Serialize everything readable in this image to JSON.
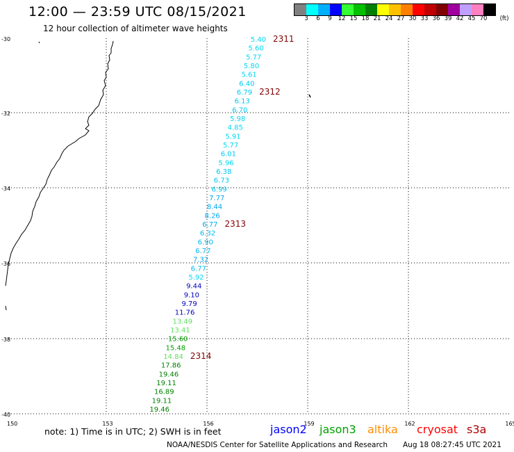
{
  "header": {
    "title": "12:00 — 23:59 UTC 08/15/2021",
    "subtitle": "12 hour collection of altimeter wave heights"
  },
  "legend": {
    "colors": [
      "#808080",
      "#00ffff",
      "#00b0ff",
      "#0000ff",
      "#33ff33",
      "#00c000",
      "#008000",
      "#ffff00",
      "#ffc000",
      "#ff8000",
      "#ff0000",
      "#c00000",
      "#800000",
      "#a000a0",
      "#c0a0ff",
      "#ff80c0",
      "#000000"
    ],
    "labels": [
      "3",
      "6",
      "9",
      "12",
      "15",
      "18",
      "21",
      "24",
      "27",
      "30",
      "33",
      "36",
      "39",
      "42",
      "45",
      "70"
    ],
    "unit": "(ft)"
  },
  "map": {
    "lat_labels": [
      "-30",
      "-32",
      "-34",
      "-36",
      "-38",
      "-40"
    ],
    "lon_labels": [
      "150",
      "153",
      "156",
      "159",
      "162",
      "165"
    ]
  },
  "passes": [
    {
      "id": "2311",
      "color": "#800000"
    },
    {
      "id": "2312",
      "color": "#800000"
    },
    {
      "id": "2313",
      "color": "#800000"
    },
    {
      "id": "2314",
      "color": "#800000"
    }
  ],
  "observations": [
    {
      "value": "5.40",
      "color": "#00d8f0"
    },
    {
      "value": "5.60",
      "color": "#00d8f0"
    },
    {
      "value": "5.77",
      "color": "#00d8f0"
    },
    {
      "value": "5.80",
      "color": "#00d8f0"
    },
    {
      "value": "5.61",
      "color": "#00d8f0"
    },
    {
      "value": "6.40",
      "color": "#00c8f0"
    },
    {
      "value": "6.79",
      "color": "#00c8f0"
    },
    {
      "value": "6.13",
      "color": "#00c8f0"
    },
    {
      "value": "6.70",
      "color": "#00c8f0"
    },
    {
      "value": "5.98",
      "color": "#00d8f0"
    },
    {
      "value": "4.85",
      "color": "#00d8f0"
    },
    {
      "value": "5.91",
      "color": "#00d8f0"
    },
    {
      "value": "5.77",
      "color": "#00d8f0"
    },
    {
      "value": "6.01",
      "color": "#00c8f0"
    },
    {
      "value": "5.96",
      "color": "#00d8f0"
    },
    {
      "value": "6.38",
      "color": "#00c8f0"
    },
    {
      "value": "6.73",
      "color": "#00c8f0"
    },
    {
      "value": "6.99",
      "color": "#00c8f0"
    },
    {
      "value": "7.77",
      "color": "#00a8f0"
    },
    {
      "value": "8.44",
      "color": "#00a8f0"
    },
    {
      "value": "8.26",
      "color": "#00a8f0"
    },
    {
      "value": "6.77",
      "color": "#00a8f0"
    },
    {
      "value": "6.32",
      "color": "#00b8f0"
    },
    {
      "value": "6.90",
      "color": "#00b8f0"
    },
    {
      "value": "6.77",
      "color": "#00b8f0"
    },
    {
      "value": "7.32",
      "color": "#00a8f0"
    },
    {
      "value": "6.77",
      "color": "#00b8f0"
    },
    {
      "value": "5.92",
      "color": "#00d8f0"
    },
    {
      "value": "9.44",
      "color": "#0000c0"
    },
    {
      "value": "9.10",
      "color": "#0000c0"
    },
    {
      "value": "9.79",
      "color": "#0000c0"
    },
    {
      "value": "11.76",
      "color": "#0000c0"
    },
    {
      "value": "13.49",
      "color": "#60e060"
    },
    {
      "value": "13.41",
      "color": "#60e060"
    },
    {
      "value": "15.60",
      "color": "#00a000"
    },
    {
      "value": "15.48",
      "color": "#00a000"
    },
    {
      "value": "14.84",
      "color": "#60e060"
    },
    {
      "value": "17.86",
      "color": "#008000"
    },
    {
      "value": "19.46",
      "color": "#008000"
    },
    {
      "value": "19.11",
      "color": "#008000"
    },
    {
      "value": "16.89",
      "color": "#008000"
    },
    {
      "value": "19.11",
      "color": "#008000"
    },
    {
      "value": "19.46",
      "color": "#008000"
    }
  ],
  "footer": {
    "note": "note: 1) Time is in UTC; 2) SWH is in feet",
    "satellites": [
      {
        "name": "jason2",
        "color": "#0000ff"
      },
      {
        "name": "jason3",
        "color": "#00a000"
      },
      {
        "name": "altika",
        "color": "#ff8c00"
      },
      {
        "name": "cryosat",
        "color": "#ff0000"
      },
      {
        "name": "s3a",
        "color": "#b00000"
      }
    ],
    "credit": "NOAA/NESDIS Center for Satellite Applications and Research",
    "timestamp": "Aug 18 08:27:45 UTC 2021"
  }
}
